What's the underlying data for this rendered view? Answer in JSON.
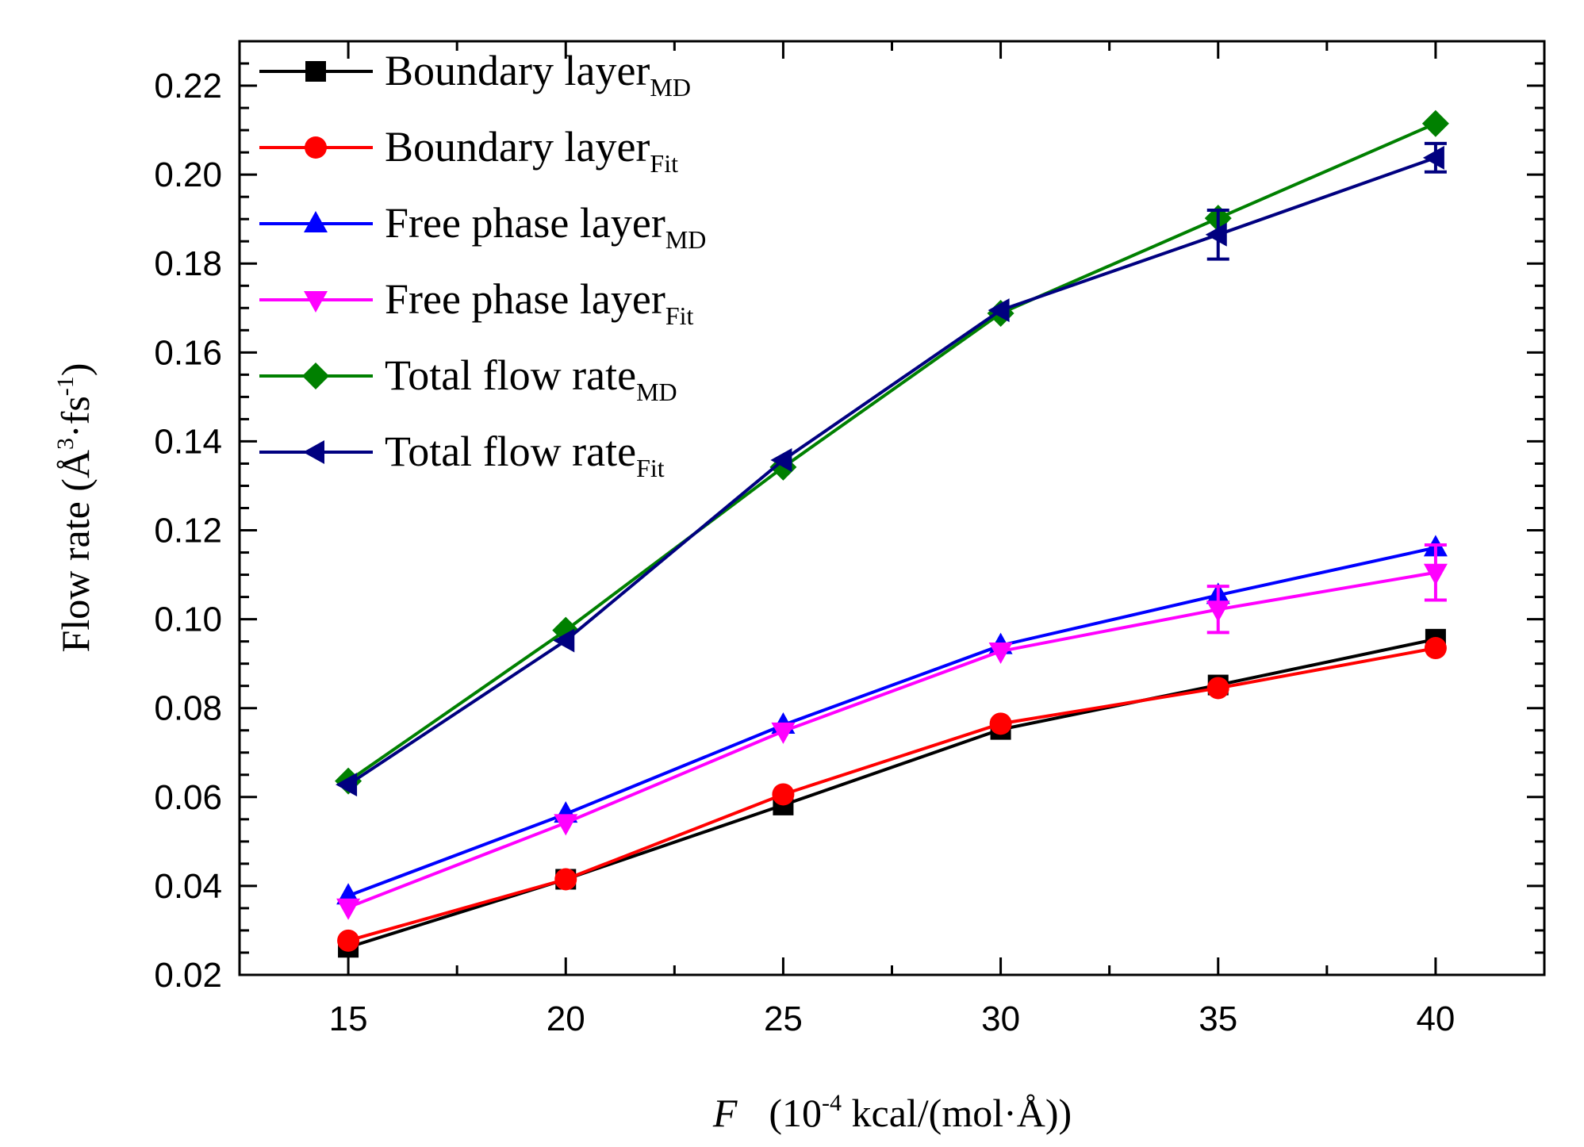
{
  "chart_data": {
    "type": "line",
    "title": "",
    "xlabel": {
      "italic": "F",
      "pre": "(10",
      "sup": "-4",
      "post": " kcal/(mol·Å))"
    },
    "ylabel": {
      "pre": "Flow rate (Å",
      "sup1": "3",
      "mid": "·fs",
      "sup2": "-1",
      "post": ")"
    },
    "x": [
      15,
      20,
      25,
      30,
      35,
      40
    ],
    "xlim": [
      12.5,
      42.5
    ],
    "ylim": [
      0.02,
      0.23
    ],
    "x_ticks": [
      "15",
      "20",
      "25",
      "30",
      "35",
      "40"
    ],
    "y_ticks": [
      "0.02",
      "0.04",
      "0.06",
      "0.08",
      "0.10",
      "0.12",
      "0.14",
      "0.16",
      "0.18",
      "0.20",
      "0.22"
    ],
    "legend_position": "top-left",
    "series": [
      {
        "name": "Boundary layer",
        "subscript": "MD",
        "color": "#000000",
        "marker": "square",
        "values": [
          0.0262,
          0.0415,
          0.0582,
          0.0752,
          0.0852,
          0.0955
        ]
      },
      {
        "name": "Boundary layer",
        "subscript": "Fit",
        "color": "#ff0000",
        "marker": "circle",
        "values": [
          0.0277,
          0.0415,
          0.0606,
          0.0765,
          0.0845,
          0.0935
        ]
      },
      {
        "name": "Free phase layer",
        "subscript": "MD",
        "color": "#0000ff",
        "marker": "triangle-up",
        "values": [
          0.0378,
          0.0562,
          0.0762,
          0.0941,
          0.1054,
          0.1161
        ]
      },
      {
        "name": "Free phase layer",
        "subscript": "Fit",
        "color": "#ff00ff",
        "marker": "triangle-down",
        "values": [
          0.0352,
          0.0542,
          0.0748,
          0.0928,
          0.1022,
          0.1105
        ],
        "errors": [
          0,
          0,
          0,
          0,
          0.0052,
          0.0062
        ]
      },
      {
        "name": "Total flow rate",
        "subscript": "MD",
        "color": "#008000",
        "marker": "diamond",
        "values": [
          0.0636,
          0.0975,
          0.1342,
          0.1688,
          0.1902,
          0.2115
        ]
      },
      {
        "name": "Total flow rate",
        "subscript": "Fit",
        "color": "#000080",
        "marker": "triangle-left",
        "values": [
          0.0628,
          0.0952,
          0.1358,
          0.1695,
          0.1865,
          0.2038
        ],
        "errors": [
          0,
          0,
          0,
          0,
          0.0055,
          0.0032
        ]
      }
    ]
  }
}
